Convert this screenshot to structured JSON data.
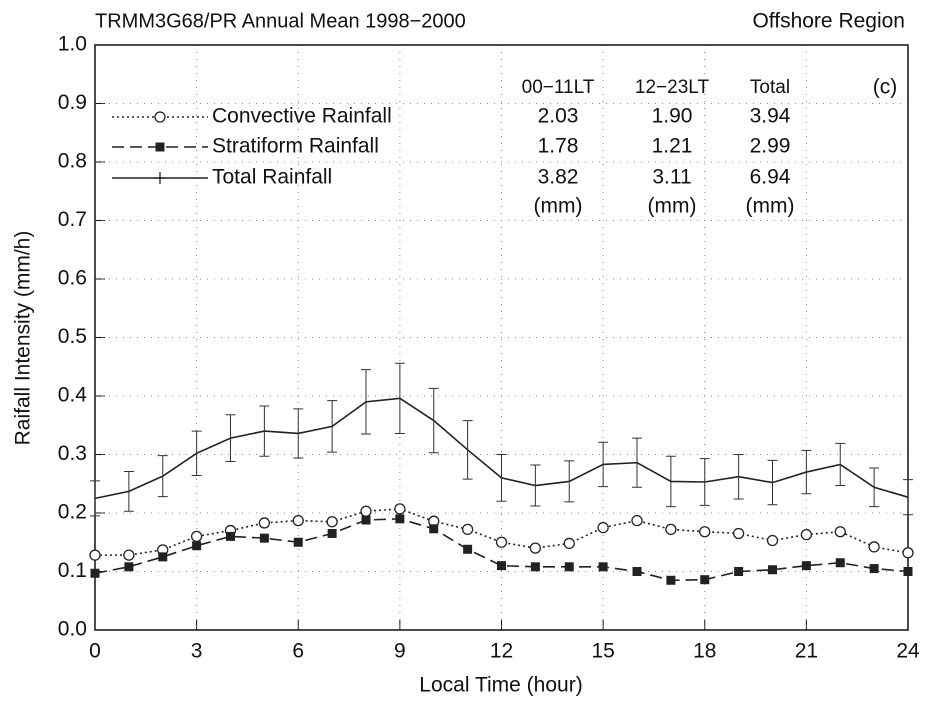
{
  "chart_data": {
    "type": "line",
    "title": "TRMM3G68/PR  Annual Mean  1998−2000",
    "subtitle": "Offshore Region",
    "xlabel": "Local Time (hour)",
    "ylabel": "Raifall Intensity (mm/h)",
    "x": [
      0,
      1,
      2,
      3,
      4,
      5,
      6,
      7,
      8,
      9,
      10,
      11,
      12,
      13,
      14,
      15,
      16,
      17,
      18,
      19,
      20,
      21,
      22,
      23,
      24
    ],
    "series": [
      {
        "name": "Convective Rainfall",
        "color": "#222",
        "dash": "2,3",
        "marker": "circle",
        "values": [
          0.128,
          0.128,
          0.137,
          0.16,
          0.17,
          0.183,
          0.187,
          0.185,
          0.203,
          0.207,
          0.186,
          0.172,
          0.15,
          0.14,
          0.148,
          0.175,
          0.187,
          0.172,
          0.168,
          0.165,
          0.153,
          0.163,
          0.168,
          0.142,
          0.132
        ]
      },
      {
        "name": "Stratiform Rainfall",
        "color": "#222",
        "dash": "12,6",
        "marker": "square",
        "values": [
          0.097,
          0.108,
          0.125,
          0.144,
          0.16,
          0.157,
          0.15,
          0.165,
          0.188,
          0.19,
          0.173,
          0.138,
          0.11,
          0.108,
          0.108,
          0.108,
          0.1,
          0.085,
          0.086,
          0.1,
          0.103,
          0.11,
          0.115,
          0.105,
          0.1
        ]
      },
      {
        "name": "Total Rainfall",
        "color": "#222",
        "dash": "none",
        "marker": "plus",
        "values": [
          0.225,
          0.237,
          0.263,
          0.302,
          0.328,
          0.34,
          0.336,
          0.348,
          0.39,
          0.396,
          0.358,
          0.308,
          0.26,
          0.247,
          0.254,
          0.283,
          0.286,
          0.254,
          0.253,
          0.262,
          0.252,
          0.27,
          0.283,
          0.244,
          0.227
        ],
        "errors": [
          0.03,
          0.034,
          0.035,
          0.038,
          0.04,
          0.043,
          0.042,
          0.044,
          0.055,
          0.06,
          0.055,
          0.05,
          0.04,
          0.035,
          0.035,
          0.038,
          0.042,
          0.043,
          0.04,
          0.038,
          0.038,
          0.037,
          0.036,
          0.033,
          0.03
        ]
      }
    ],
    "xlim": [
      0,
      24
    ],
    "xticks": [
      0,
      3,
      6,
      9,
      12,
      15,
      18,
      21,
      24
    ],
    "ylim": [
      0,
      1
    ],
    "yticks": [
      {
        "value": 0,
        "label": "0.0"
      },
      0.1,
      0.2,
      0.3,
      0.4,
      0.5,
      0.6,
      0.7,
      0.8,
      0.9,
      {
        "value": 1,
        "label": "1.0"
      }
    ],
    "grid": true,
    "legend": "upper left",
    "table": {
      "columns": [
        "00−11LT",
        "12−23LT",
        "Total"
      ],
      "panel_label": "(c)",
      "rows": [
        [
          "2.03",
          "1.90",
          "3.94"
        ],
        [
          "1.78",
          "1.21",
          "2.99"
        ],
        [
          "3.82",
          "3.11",
          "6.94"
        ]
      ],
      "units": [
        "(mm)",
        "(mm)",
        "(mm)"
      ]
    }
  }
}
